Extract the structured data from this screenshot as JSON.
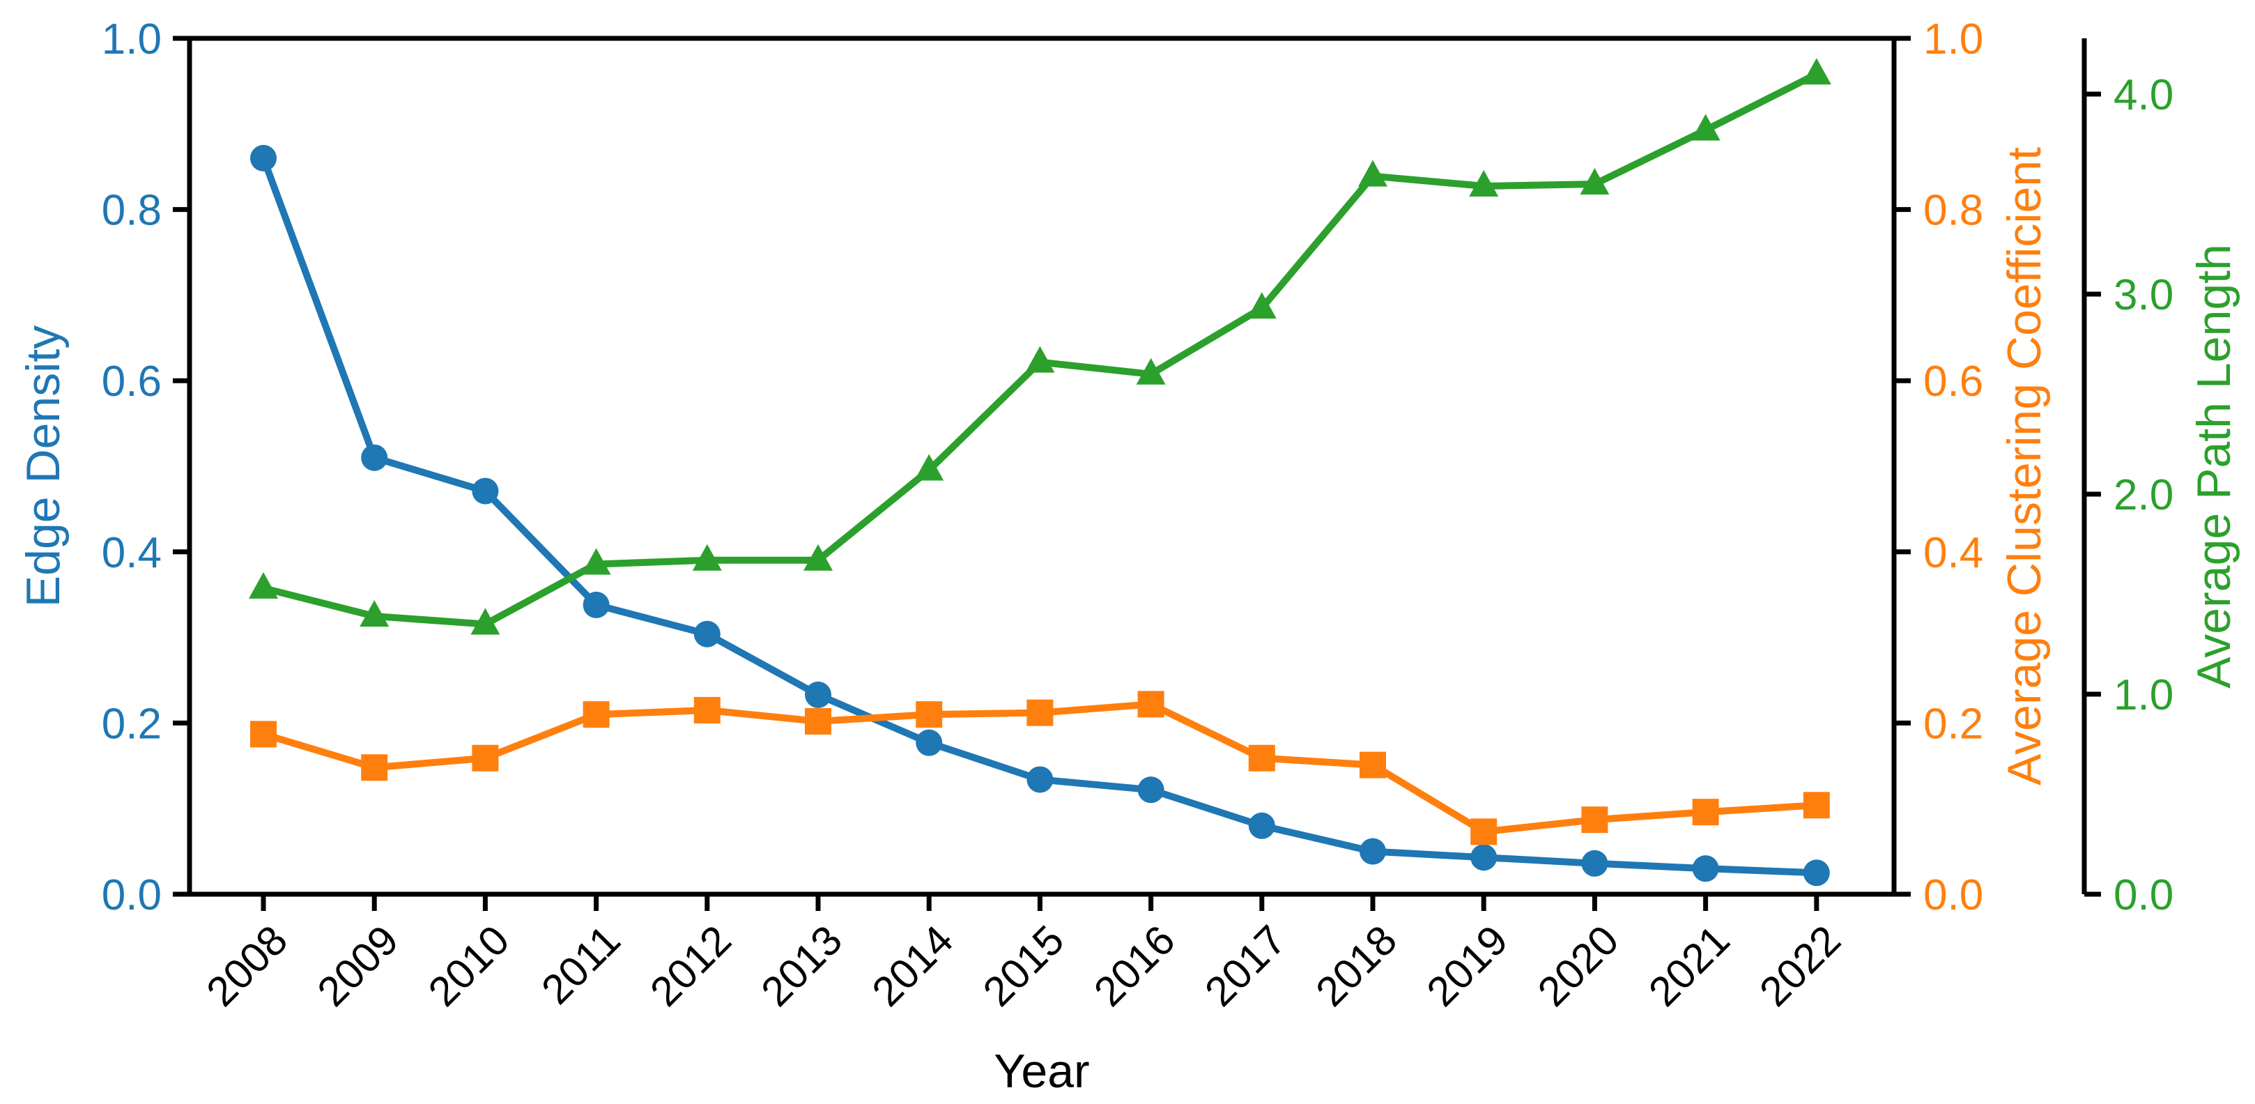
{
  "chart_data": {
    "type": "line",
    "title": "",
    "x_axis": {
      "title": "Year",
      "tick_labels": [
        "2008",
        "2009",
        "2010",
        "2011",
        "2012",
        "2013",
        "2014",
        "2015",
        "2016",
        "2017",
        "2018",
        "2019",
        "2020",
        "2021",
        "2022"
      ],
      "tick_label_rotation_deg": -45,
      "tick_label_color": "#000000"
    },
    "left_axis": {
      "title": "Edge Density",
      "color": "#1f77b4",
      "tick_labels": [
        "0.0",
        "0.2",
        "0.4",
        "0.6",
        "0.8",
        "1.0"
      ],
      "tick_values": [
        0.0,
        0.2,
        0.4,
        0.6,
        0.8,
        1.0
      ],
      "range": [
        0.0,
        1.0
      ]
    },
    "right_axis1": {
      "title": "Average Clustering Coefficient",
      "color": "#ff7f0e",
      "tick_labels": [
        "0.0",
        "0.2",
        "0.4",
        "0.6",
        "0.8",
        "1.0"
      ],
      "tick_values": [
        0.0,
        0.2,
        0.4,
        0.6,
        0.8,
        1.0
      ],
      "range": [
        0.0,
        1.0
      ]
    },
    "right_axis2": {
      "title": "Average Path Length",
      "color": "#2ca02c",
      "tick_labels": [
        "0.0",
        "1.0",
        "2.0",
        "3.0",
        "4.0"
      ],
      "tick_values": [
        0.0,
        1.0,
        2.0,
        3.0,
        4.0
      ],
      "range": [
        0.0,
        4.28
      ]
    },
    "categories": [
      "2008",
      "2009",
      "2010",
      "2011",
      "2012",
      "2013",
      "2014",
      "2015",
      "2016",
      "2017",
      "2018",
      "2019",
      "2020",
      "2021",
      "2022"
    ],
    "series": [
      {
        "name": "Edge Density",
        "axis": "left",
        "color": "#1f77b4",
        "marker": "circle",
        "values": [
          0.86,
          0.51,
          0.471,
          0.338,
          0.304,
          0.233,
          0.177,
          0.134,
          0.122,
          0.08,
          0.05,
          0.043,
          0.036,
          0.03,
          0.025
        ]
      },
      {
        "name": "Average Clustering Coefficient",
        "axis": "right1",
        "color": "#ff7f0e",
        "marker": "square",
        "values": [
          0.187,
          0.148,
          0.159,
          0.21,
          0.215,
          0.202,
          0.21,
          0.212,
          0.222,
          0.159,
          0.151,
          0.073,
          0.087,
          0.096,
          0.104
        ]
      },
      {
        "name": "Average Path Length",
        "axis": "right2",
        "color": "#2ca02c",
        "marker": "triangle",
        "values": [
          1.53,
          1.39,
          1.35,
          1.65,
          1.67,
          1.67,
          2.12,
          2.66,
          2.6,
          2.93,
          3.59,
          3.54,
          3.55,
          3.82,
          4.1
        ]
      }
    ],
    "grid": "off",
    "legend": "none",
    "background_color": "#ffffff",
    "spine_color": "#000000"
  }
}
